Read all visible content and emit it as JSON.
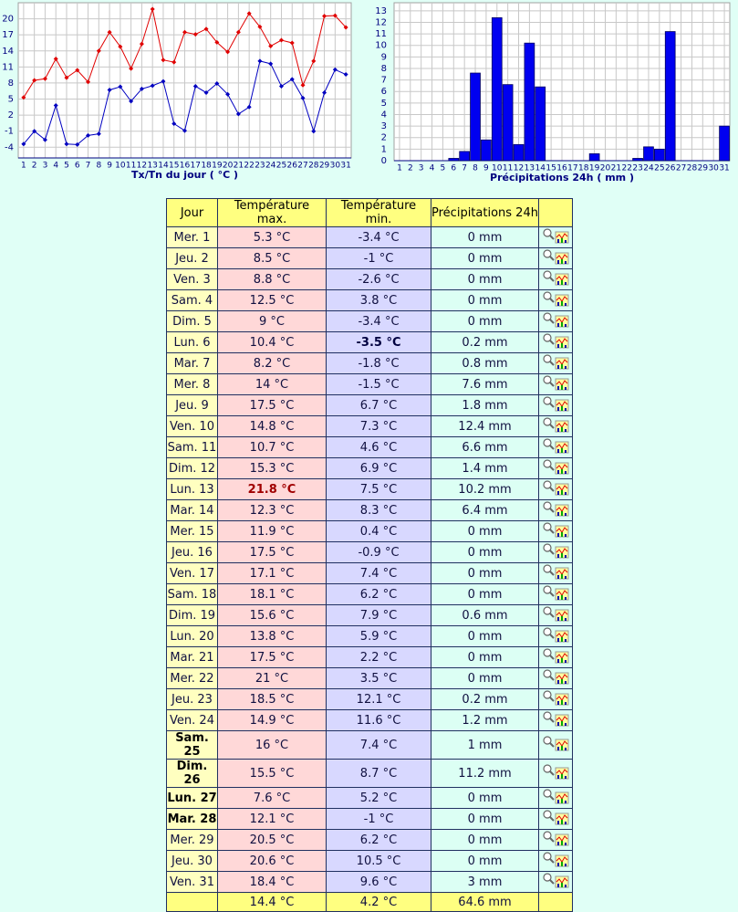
{
  "chart_data": [
    {
      "type": "line",
      "xlabel": "Tx/Tn du jour ( °C )",
      "categories": [
        "1",
        "2",
        "3",
        "4",
        "5",
        "6",
        "7",
        "8",
        "9",
        "10",
        "11",
        "12",
        "13",
        "14",
        "15",
        "16",
        "17",
        "18",
        "19",
        "20",
        "21",
        "22",
        "23",
        "24",
        "25",
        "26",
        "27",
        "28",
        "29",
        "30",
        "31"
      ],
      "series": [
        {
          "color": "#e00000",
          "values": [
            5.3,
            8.5,
            8.8,
            12.5,
            9,
            10.4,
            8.2,
            14,
            17.5,
            14.8,
            10.7,
            15.3,
            21.8,
            12.3,
            11.9,
            17.5,
            17.1,
            18.1,
            15.6,
            13.8,
            17.5,
            21,
            18.5,
            14.9,
            16,
            15.5,
            7.6,
            12.1,
            20.5,
            20.6,
            18.4
          ]
        },
        {
          "color": "#0000c0",
          "values": [
            -3.4,
            -1,
            -2.6,
            3.8,
            -3.4,
            -3.5,
            -1.8,
            -1.5,
            6.7,
            7.3,
            4.6,
            6.9,
            7.5,
            8.3,
            0.4,
            -0.9,
            7.4,
            6.2,
            7.9,
            5.9,
            2.2,
            3.5,
            12.1,
            11.6,
            7.4,
            8.7,
            5.2,
            -1,
            6.2,
            10.5,
            9.6
          ]
        }
      ],
      "ylim": [
        -6,
        23
      ],
      "yticks": [
        -4,
        -1,
        2,
        5,
        8,
        11,
        14,
        17,
        20
      ],
      "grid": true
    },
    {
      "type": "bar",
      "xlabel": "Précipitations 24h ( mm )",
      "categories": [
        "1",
        "2",
        "3",
        "4",
        "5",
        "6",
        "7",
        "8",
        "9",
        "10",
        "11",
        "12",
        "13",
        "14",
        "15",
        "16",
        "17",
        "18",
        "19",
        "20",
        "21",
        "22",
        "23",
        "24",
        "25",
        "26",
        "27",
        "28",
        "29",
        "30",
        "31"
      ],
      "values": [
        0,
        0,
        0,
        0,
        0,
        0.2,
        0.8,
        7.6,
        1.8,
        12.4,
        6.6,
        1.4,
        10.2,
        6.4,
        0,
        0,
        0,
        0,
        0.6,
        0,
        0,
        0,
        0.2,
        1.2,
        1,
        11.2,
        0,
        0,
        0,
        0,
        3
      ],
      "color": "#0000f0",
      "ylim": [
        0,
        13.7
      ],
      "yticks": [
        0,
        1,
        2,
        3,
        4,
        5,
        6,
        7,
        8,
        9,
        10,
        11,
        12,
        13
      ],
      "grid": true
    }
  ],
  "table": {
    "header": [
      "Jour",
      "Température max.",
      "Température min.",
      "Précipitations 24h"
    ],
    "rows": [
      [
        "Mer. 1",
        "5.3 °C",
        "-3.4 °C",
        "0 mm"
      ],
      [
        "Jeu. 2",
        "8.5 °C",
        "-1 °C",
        "0 mm"
      ],
      [
        "Ven. 3",
        "8.8 °C",
        "-2.6 °C",
        "0 mm"
      ],
      [
        "Sam. 4",
        "12.5 °C",
        "3.8 °C",
        "0 mm"
      ],
      [
        "Dim. 5",
        "9 °C",
        "-3.4 °C",
        "0 mm"
      ],
      [
        "Lun. 6",
        "10.4 °C",
        "-3.5 °C",
        "0.2 mm"
      ],
      [
        "Mar. 7",
        "8.2 °C",
        "-1.8 °C",
        "0.8 mm"
      ],
      [
        "Mer. 8",
        "14 °C",
        "-1.5 °C",
        "7.6 mm"
      ],
      [
        "Jeu. 9",
        "17.5 °C",
        "6.7 °C",
        "1.8 mm"
      ],
      [
        "Ven. 10",
        "14.8 °C",
        "7.3 °C",
        "12.4 mm"
      ],
      [
        "Sam. 11",
        "10.7 °C",
        "4.6 °C",
        "6.6 mm"
      ],
      [
        "Dim. 12",
        "15.3 °C",
        "6.9 °C",
        "1.4 mm"
      ],
      [
        "Lun. 13",
        "21.8 °C",
        "7.5 °C",
        "10.2 mm"
      ],
      [
        "Mar. 14",
        "12.3 °C",
        "8.3 °C",
        "6.4 mm"
      ],
      [
        "Mer. 15",
        "11.9 °C",
        "0.4 °C",
        "0 mm"
      ],
      [
        "Jeu. 16",
        "17.5 °C",
        "-0.9 °C",
        "0 mm"
      ],
      [
        "Ven. 17",
        "17.1 °C",
        "7.4 °C",
        "0 mm"
      ],
      [
        "Sam. 18",
        "18.1 °C",
        "6.2 °C",
        "0 mm"
      ],
      [
        "Dim. 19",
        "15.6 °C",
        "7.9 °C",
        "0.6 mm"
      ],
      [
        "Lun. 20",
        "13.8 °C",
        "5.9 °C",
        "0 mm"
      ],
      [
        "Mar. 21",
        "17.5 °C",
        "2.2 °C",
        "0 mm"
      ],
      [
        "Mer. 22",
        "21 °C",
        "3.5 °C",
        "0 mm"
      ],
      [
        "Jeu. 23",
        "18.5 °C",
        "12.1 °C",
        "0.2 mm"
      ],
      [
        "Ven. 24",
        "14.9 °C",
        "11.6 °C",
        "1.2 mm"
      ],
      [
        "Sam. 25",
        "16 °C",
        "7.4 °C",
        "1 mm"
      ],
      [
        "Dim. 26",
        "15.5 °C",
        "8.7 °C",
        "11.2 mm"
      ],
      [
        "Lun. 27",
        "7.6 °C",
        "5.2 °C",
        "0 mm"
      ],
      [
        "Mar. 28",
        "12.1 °C",
        "-1 °C",
        "0 mm"
      ],
      [
        "Mer. 29",
        "20.5 °C",
        "6.2 °C",
        "0 mm"
      ],
      [
        "Jeu. 30",
        "20.6 °C",
        "10.5 °C",
        "0 mm"
      ],
      [
        "Ven. 31",
        "18.4 °C",
        "9.6 °C",
        "3 mm"
      ]
    ],
    "footer": [
      "14.4 °C",
      "4.2 °C",
      "64.6 mm"
    ],
    "emphasis": [
      {
        "row": 12,
        "col": 1,
        "color": "#a00000"
      },
      {
        "row": 5,
        "col": 2,
        "color": "#000040"
      },
      {
        "row": 24,
        "col": 0,
        "color": "#000000"
      },
      {
        "row": 25,
        "col": 0,
        "color": "#000000"
      },
      {
        "row": 26,
        "col": 0,
        "color": "#000000"
      },
      {
        "row": 27,
        "col": 0,
        "color": "#000000"
      }
    ]
  }
}
